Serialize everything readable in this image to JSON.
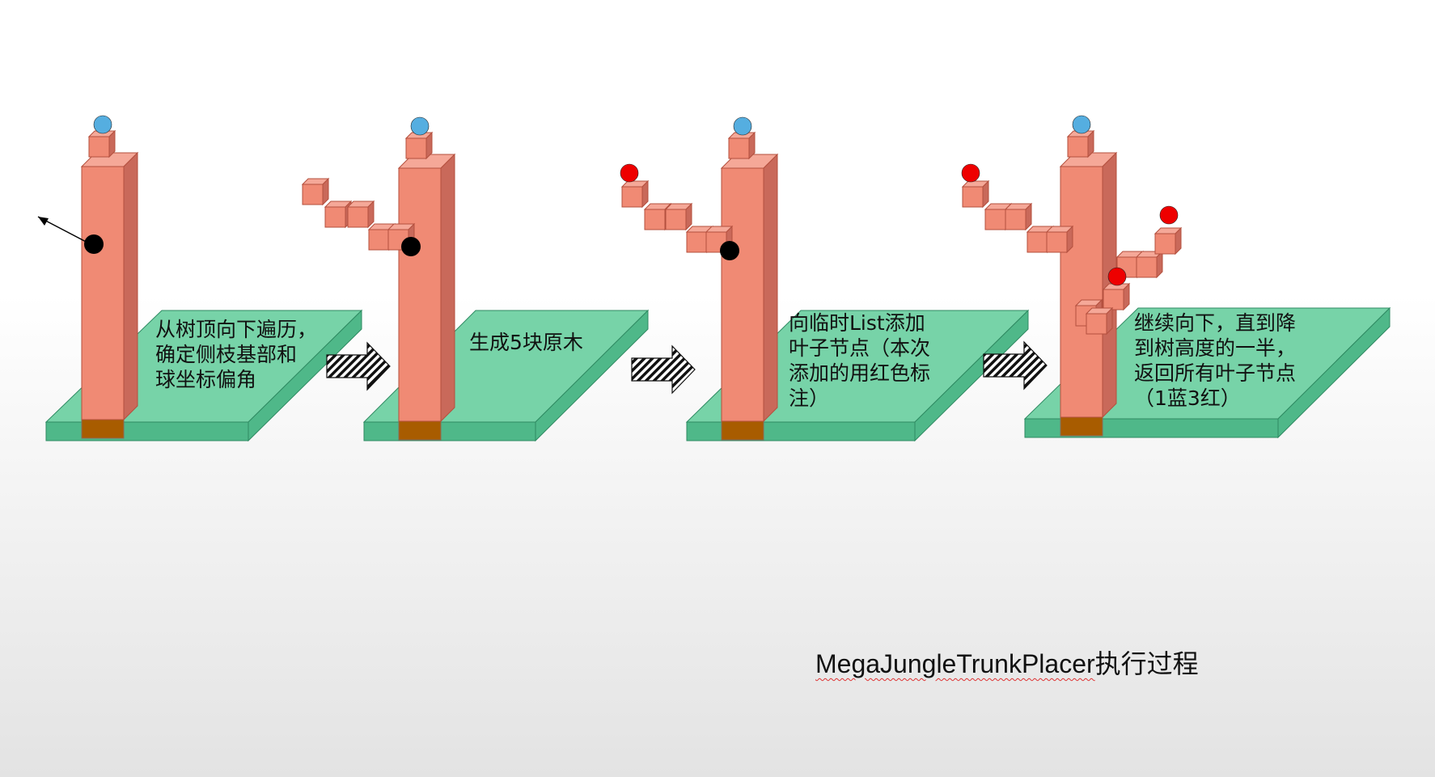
{
  "colors": {
    "platform_top": "#77d3a8",
    "platform_side": "#4fb889",
    "platform_stroke": "#2f8a62",
    "trunk_front": "#f08a74",
    "trunk_side": "#c9695a",
    "trunk_top": "#f5a898",
    "trunk_stroke": "#b4503e",
    "root": "#a85c00",
    "blue_leaf": "#55aee0",
    "red_leaf": "#ee0000",
    "marker": "#000000"
  },
  "steps": [
    {
      "text": "从树顶向下遍历，\n确定侧枝基部和\n球坐标偏角"
    },
    {
      "text": "生成5块原木"
    },
    {
      "text": "向临时List添加\n叶子节点（本次\n添加的用红色标\n注）"
    },
    {
      "text": "继续向下，直到降\n到树高度的一半，\n返回所有叶子节点\n（1蓝3红）"
    }
  ],
  "caption": {
    "name": "MegaJungleTrunkPlacer",
    "suffix": "执行过程"
  }
}
